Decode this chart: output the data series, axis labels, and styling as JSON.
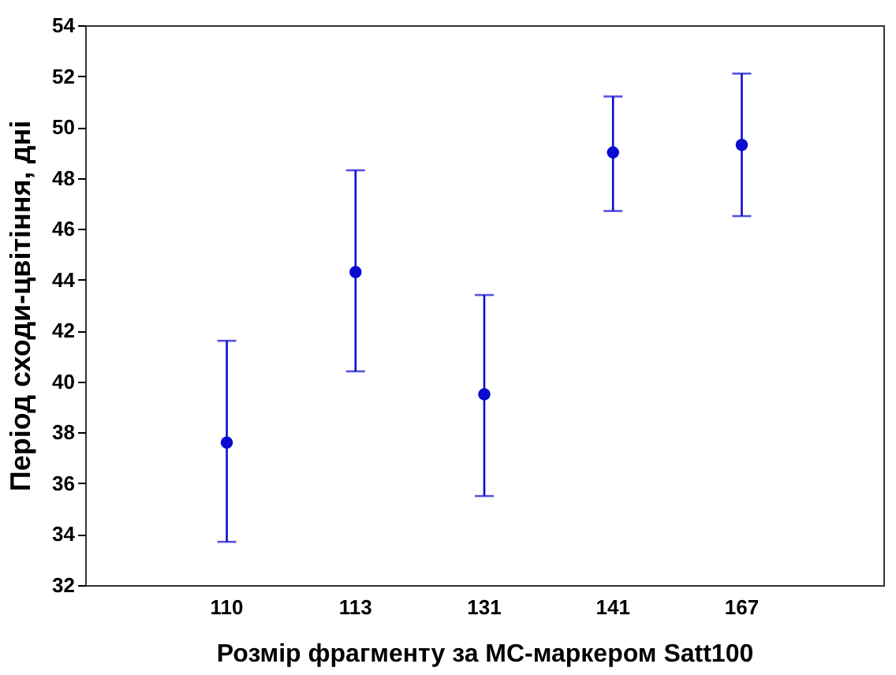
{
  "chart_data": {
    "type": "scatter",
    "xlabel": "Розмір фрагменту за МС-маркером Satt100",
    "ylabel": "Період сходи-цвітіння, дні",
    "categories": [
      "110",
      "113",
      "131",
      "141",
      "167"
    ],
    "series": [
      {
        "color": "#0a0ad0",
        "values": [
          37.6,
          44.3,
          39.5,
          49.0,
          49.3
        ],
        "errors": [
          [
            33.7,
            41.6
          ],
          [
            40.4,
            48.3
          ],
          [
            35.5,
            43.4
          ],
          [
            46.7,
            51.2
          ],
          [
            46.5,
            52.1
          ]
        ]
      }
    ],
    "ylim": [
      32,
      54
    ],
    "yticks": [
      32,
      34,
      36,
      38,
      40,
      42,
      44,
      46,
      48,
      50,
      52,
      54
    ],
    "grid": false,
    "legend": false,
    "marker": "circle"
  }
}
